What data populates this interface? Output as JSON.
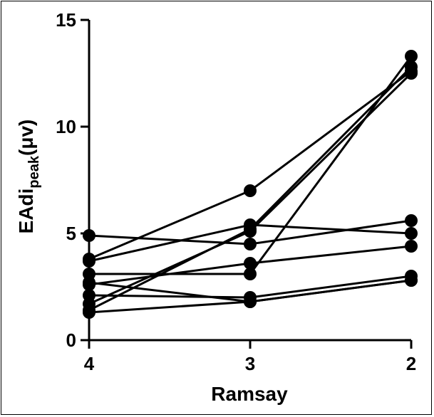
{
  "chart_data": {
    "type": "line",
    "xlabel": "Ramsay",
    "ylabel_main": "EAdi",
    "ylabel_sub": "peak",
    "ylabel_unit": "(μv)",
    "categories": [
      "4",
      "3",
      "2"
    ],
    "ylim": [
      0,
      15
    ],
    "yticks": [
      0,
      5,
      10,
      15
    ],
    "grid": false,
    "line_color": "#000000",
    "series": [
      {
        "values": [
          4.9,
          4.5,
          5.6
        ]
      },
      {
        "values": [
          3.8,
          7.0,
          12.6
        ]
      },
      {
        "values": [
          3.7,
          5.4,
          5.0
        ]
      },
      {
        "values": [
          3.1,
          3.1,
          13.3
        ]
      },
      {
        "values": [
          2.6,
          3.6,
          4.4
        ]
      },
      {
        "values": [
          2.7,
          1.8,
          2.8
        ]
      },
      {
        "values": [
          2.1,
          2.0,
          3.0
        ]
      },
      {
        "values": [
          1.7,
          5.1,
          12.5
        ]
      },
      {
        "values": [
          1.3,
          1.8,
          2.8
        ]
      },
      {
        "values": [
          1.4,
          5.2,
          12.8
        ]
      }
    ]
  }
}
